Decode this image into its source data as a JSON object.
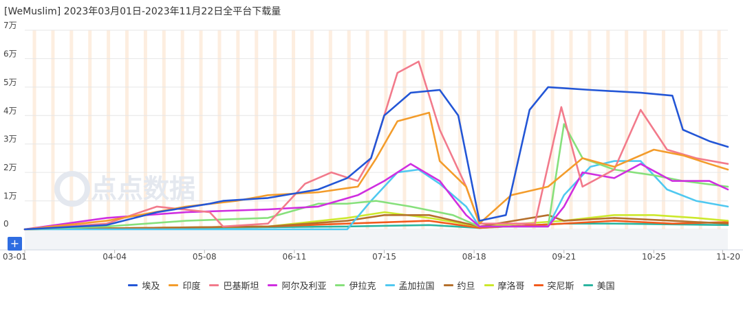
{
  "chart_data": {
    "type": "line",
    "title": "[WeMuslim]  2023年03月01日-2023年11月22日全平台下载量",
    "watermark": "点点数据",
    "y_ticks": [
      "0",
      "1万",
      "2万",
      "3万",
      "4万",
      "5万",
      "6万",
      "7万"
    ],
    "x_ticks": [
      "03-01",
      "04-04",
      "05-08",
      "06-11",
      "07-15",
      "08-18",
      "09-21",
      "10-25",
      "11-20"
    ],
    "ylim": [
      0,
      70000
    ],
    "x_range": [
      "03-01",
      "11-22"
    ],
    "grid": true,
    "legend_position": "bottom",
    "zoom_label": "+",
    "series": [
      {
        "name": "埃及",
        "color": "#2356d6",
        "points": [
          [
            "03-01",
            0
          ],
          [
            "04-01",
            1500
          ],
          [
            "04-20",
            6000
          ],
          [
            "05-10",
            9000
          ],
          [
            "05-15",
            10000
          ],
          [
            "06-01",
            11000
          ],
          [
            "06-20",
            14000
          ],
          [
            "07-01",
            18000
          ],
          [
            "07-10",
            25000
          ],
          [
            "07-15",
            40000
          ],
          [
            "07-25",
            48000
          ],
          [
            "08-05",
            49000
          ],
          [
            "08-12",
            40000
          ],
          [
            "08-20",
            3000
          ],
          [
            "08-30",
            5000
          ],
          [
            "09-08",
            42000
          ],
          [
            "09-15",
            50000
          ],
          [
            "10-01",
            49000
          ],
          [
            "10-20",
            48000
          ],
          [
            "11-01",
            47000
          ],
          [
            "11-05",
            35000
          ],
          [
            "11-15",
            31000
          ],
          [
            "11-22",
            29000
          ]
        ]
      },
      {
        "name": "印度",
        "color": "#f39c2b",
        "points": [
          [
            "03-01",
            0
          ],
          [
            "04-01",
            3000
          ],
          [
            "05-01",
            8000
          ],
          [
            "05-20",
            10000
          ],
          [
            "06-01",
            12000
          ],
          [
            "06-20",
            13000
          ],
          [
            "07-05",
            15000
          ],
          [
            "07-12",
            25000
          ],
          [
            "07-20",
            38000
          ],
          [
            "08-01",
            41000
          ],
          [
            "08-05",
            24000
          ],
          [
            "08-15",
            15000
          ],
          [
            "08-20",
            2000
          ],
          [
            "09-01",
            12000
          ],
          [
            "09-15",
            15000
          ],
          [
            "09-28",
            25000
          ],
          [
            "10-10",
            22000
          ],
          [
            "10-25",
            28000
          ],
          [
            "11-05",
            26000
          ],
          [
            "11-15",
            23000
          ],
          [
            "11-22",
            21000
          ]
        ]
      },
      {
        "name": "巴基斯坦",
        "color": "#f27a8b",
        "points": [
          [
            "03-01",
            0
          ],
          [
            "04-01",
            2000
          ],
          [
            "04-20",
            8000
          ],
          [
            "05-10",
            6000
          ],
          [
            "05-15",
            1000
          ],
          [
            "06-01",
            2000
          ],
          [
            "06-15",
            16000
          ],
          [
            "06-25",
            20000
          ],
          [
            "07-05",
            17000
          ],
          [
            "07-10",
            25000
          ],
          [
            "07-20",
            55000
          ],
          [
            "07-28",
            59000
          ],
          [
            "08-05",
            35000
          ],
          [
            "08-15",
            15000
          ],
          [
            "08-20",
            2000
          ],
          [
            "09-10",
            2000
          ],
          [
            "09-20",
            43000
          ],
          [
            "09-28",
            15000
          ],
          [
            "10-10",
            21000
          ],
          [
            "10-20",
            42000
          ],
          [
            "10-30",
            28000
          ],
          [
            "11-10",
            25000
          ],
          [
            "11-22",
            23000
          ]
        ]
      },
      {
        "name": "阿尔及利亚",
        "color": "#cf2ee0",
        "points": [
          [
            "03-01",
            0
          ],
          [
            "04-01",
            4000
          ],
          [
            "05-01",
            6000
          ],
          [
            "06-01",
            7000
          ],
          [
            "06-20",
            8000
          ],
          [
            "07-05",
            12000
          ],
          [
            "07-15",
            17000
          ],
          [
            "07-25",
            23000
          ],
          [
            "08-05",
            17000
          ],
          [
            "08-15",
            5000
          ],
          [
            "08-20",
            1000
          ],
          [
            "09-15",
            1000
          ],
          [
            "09-21",
            8000
          ],
          [
            "09-28",
            20000
          ],
          [
            "10-10",
            18000
          ],
          [
            "10-20",
            23000
          ],
          [
            "11-01",
            17000
          ],
          [
            "11-15",
            17000
          ],
          [
            "11-22",
            14000
          ]
        ]
      },
      {
        "name": "伊拉克",
        "color": "#86e07b",
        "points": [
          [
            "03-01",
            0
          ],
          [
            "04-01",
            1000
          ],
          [
            "05-01",
            3000
          ],
          [
            "06-01",
            4000
          ],
          [
            "06-20",
            9000
          ],
          [
            "07-01",
            9000
          ],
          [
            "07-12",
            10000
          ],
          [
            "07-25",
            8000
          ],
          [
            "08-10",
            5000
          ],
          [
            "08-20",
            1000
          ],
          [
            "09-15",
            1000
          ],
          [
            "09-21",
            37000
          ],
          [
            "09-28",
            25000
          ],
          [
            "10-10",
            21000
          ],
          [
            "10-25",
            19000
          ],
          [
            "11-05",
            17000
          ],
          [
            "11-22",
            15000
          ]
        ]
      },
      {
        "name": "孟加拉国",
        "color": "#4fc8f0",
        "points": [
          [
            "03-01",
            0
          ],
          [
            "07-01",
            0
          ],
          [
            "07-10",
            10000
          ],
          [
            "07-20",
            20000
          ],
          [
            "07-28",
            21000
          ],
          [
            "08-05",
            16000
          ],
          [
            "08-15",
            8000
          ],
          [
            "08-20",
            1000
          ],
          [
            "09-15",
            1000
          ],
          [
            "09-21",
            12000
          ],
          [
            "10-01",
            22000
          ],
          [
            "10-10",
            24000
          ],
          [
            "10-20",
            24000
          ],
          [
            "10-30",
            14000
          ],
          [
            "11-10",
            10000
          ],
          [
            "11-22",
            8000
          ]
        ]
      },
      {
        "name": "约旦",
        "color": "#b5702c",
        "points": [
          [
            "03-01",
            0
          ],
          [
            "06-01",
            1000
          ],
          [
            "07-01",
            3000
          ],
          [
            "07-15",
            5000
          ],
          [
            "08-01",
            5000
          ],
          [
            "08-20",
            1000
          ],
          [
            "09-15",
            5000
          ],
          [
            "09-21",
            3000
          ],
          [
            "10-10",
            4000
          ],
          [
            "11-01",
            3000
          ],
          [
            "11-22",
            2000
          ]
        ]
      },
      {
        "name": "摩洛哥",
        "color": "#cce82b",
        "points": [
          [
            "03-01",
            0
          ],
          [
            "06-01",
            1000
          ],
          [
            "07-01",
            4000
          ],
          [
            "07-15",
            6000
          ],
          [
            "08-01",
            4000
          ],
          [
            "08-20",
            1000
          ],
          [
            "09-21",
            3000
          ],
          [
            "10-10",
            5000
          ],
          [
            "10-25",
            5000
          ],
          [
            "11-10",
            4000
          ],
          [
            "11-22",
            3000
          ]
        ]
      },
      {
        "name": "突尼斯",
        "color": "#f25a1c",
        "points": [
          [
            "03-01",
            0
          ],
          [
            "06-01",
            1000
          ],
          [
            "07-01",
            2000
          ],
          [
            "08-01",
            3000
          ],
          [
            "08-20",
            500
          ],
          [
            "09-21",
            2000
          ],
          [
            "10-10",
            3000
          ],
          [
            "11-01",
            2000
          ],
          [
            "11-22",
            2500
          ]
        ]
      },
      {
        "name": "美国",
        "color": "#2bb5a0",
        "points": [
          [
            "03-01",
            0
          ],
          [
            "07-01",
            1000
          ],
          [
            "08-01",
            1500
          ],
          [
            "08-20",
            500
          ],
          [
            "09-21",
            2000
          ],
          [
            "10-10",
            2000
          ],
          [
            "11-22",
            1500
          ]
        ]
      }
    ]
  }
}
